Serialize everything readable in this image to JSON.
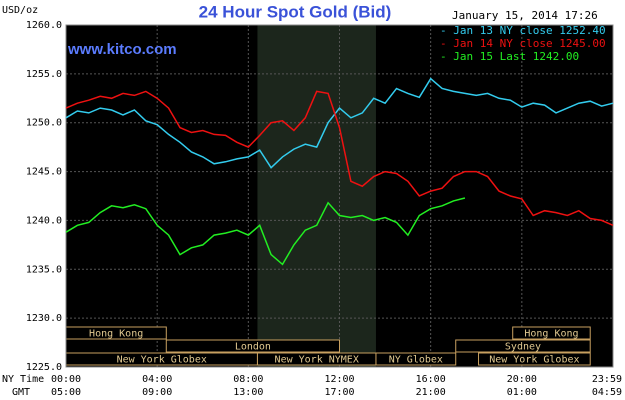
{
  "chart_data": {
    "type": "line",
    "title": "24 Hour Spot Gold (Bid)",
    "y_label": "USD/oz",
    "timestamp": "January 15, 2014 17:26",
    "watermark": "www.kitco.com",
    "x_label": "NY Time",
    "x2_label": "GMT",
    "x": [
      0,
      0.5,
      1,
      1.5,
      2,
      2.5,
      3,
      3.5,
      4,
      4.5,
      5,
      5.5,
      6,
      6.5,
      7,
      7.5,
      8,
      8.5,
      9,
      9.5,
      10,
      10.5,
      11,
      11.5,
      12,
      12.5,
      13,
      13.5,
      14,
      14.5,
      15,
      15.5,
      16,
      16.5,
      17,
      17.5,
      18,
      18.5,
      19,
      19.5,
      20,
      20.5,
      21,
      21.5,
      22,
      22.5,
      23,
      23.5,
      24
    ],
    "series": [
      {
        "name": "- Jan 13 NY close 1252.40",
        "color": "#33ccee",
        "values": [
          1250.5,
          1251.2,
          1251,
          1251.5,
          1251.3,
          1250.8,
          1251.3,
          1250.2,
          1249.8,
          1248.8,
          1248,
          1247,
          1246.5,
          1245.8,
          1246,
          1246.3,
          1246.5,
          1247.2,
          1245.4,
          1246.5,
          1247.3,
          1247.8,
          1247.5,
          1250,
          1251.5,
          1250.5,
          1251,
          1252.5,
          1252,
          1253.5,
          1253,
          1252.6,
          1254.5,
          1253.5,
          1253.2,
          1253,
          1252.8,
          1253,
          1252.5,
          1252.3,
          1251.6,
          1252,
          1251.8,
          1251,
          1251.5,
          1252,
          1252.2,
          1251.7,
          1252
        ]
      },
      {
        "name": "- Jan 14 NY close 1245.00",
        "color": "#ee1111",
        "values": [
          1251.5,
          1252,
          1252.3,
          1252.7,
          1252.5,
          1253,
          1252.8,
          1253.2,
          1252.5,
          1251.5,
          1249.5,
          1249,
          1249.2,
          1248.8,
          1248.7,
          1248,
          1247.5,
          1248.7,
          1250,
          1250.2,
          1249.2,
          1250.5,
          1253.2,
          1253,
          1249.5,
          1244,
          1243.5,
          1244.5,
          1245,
          1244.8,
          1244,
          1242.5,
          1243,
          1243.3,
          1244.5,
          1245,
          1245,
          1244.5,
          1243,
          1242.5,
          1242.2,
          1240.5,
          1241,
          1240.8,
          1240.5,
          1241,
          1240.2,
          1240,
          1239.5
        ]
      },
      {
        "name": "- Jan 15 Last 1242.00",
        "color": "#22ee22",
        "values": [
          1238.8,
          1239.5,
          1239.8,
          1240.8,
          1241.5,
          1241.3,
          1241.6,
          1241.2,
          1239.5,
          1238.5,
          1236.5,
          1237.2,
          1237.5,
          1238.5,
          1238.7,
          1239,
          1238.5,
          1239.5,
          1236.5,
          1235.5,
          1237.5,
          1239,
          1239.5,
          1241.8,
          1240.5,
          1240.3,
          1240.5,
          1240,
          1240.3,
          1239.8,
          1238.5,
          1240.5,
          1241.2,
          1241.5,
          1242,
          1242.3,
          null,
          null,
          null,
          null,
          null,
          null,
          null,
          null,
          null,
          null,
          null,
          null,
          null
        ]
      }
    ],
    "xlim": [
      0,
      24
    ],
    "xticks": [
      {
        "value": 0,
        "label": "00:00"
      },
      {
        "value": 4,
        "label": "04:00"
      },
      {
        "value": 8,
        "label": "08:00"
      },
      {
        "value": 12,
        "label": "12:00"
      },
      {
        "value": 16,
        "label": "16:00"
      },
      {
        "value": 20,
        "label": "20:00"
      },
      {
        "value": 24,
        "label": "23:59"
      }
    ],
    "x2ticklabels": [
      "05:00",
      "09:00",
      "13:00",
      "17:00",
      "21:00",
      "01:00",
      "04:59"
    ],
    "ylim": [
      1225,
      1260
    ],
    "yticks": [
      {
        "value": 1225,
        "label": "1225.0"
      },
      {
        "value": 1230,
        "label": "1230.0"
      },
      {
        "value": 1235,
        "label": "1235.0"
      },
      {
        "value": 1240,
        "label": "1240.0"
      },
      {
        "value": 1245,
        "label": "1245.0"
      },
      {
        "value": 1250,
        "label": "1250.0"
      },
      {
        "value": 1255,
        "label": "1255.0"
      },
      {
        "value": 1260,
        "label": "1260.0"
      }
    ],
    "grid": true,
    "sessions": [
      {
        "label": "Hong Kong",
        "start": 0,
        "end": 4.4
      },
      {
        "label": "London",
        "start": 4.4,
        "end": 12
      },
      {
        "label": "New York Globex",
        "start": 0,
        "end": 8.4
      },
      {
        "label": "New York NYMEX",
        "start": 8.4,
        "end": 13.6
      },
      {
        "label": "NY Globex",
        "start": 13.6,
        "end": 17.1
      },
      {
        "label": "Sydney",
        "start": 17.1,
        "end": 23
      },
      {
        "label": "Hong Kong",
        "start": 19.6,
        "end": 23
      },
      {
        "label": "New York Globex",
        "start": 18.1,
        "end": 23
      }
    ]
  }
}
